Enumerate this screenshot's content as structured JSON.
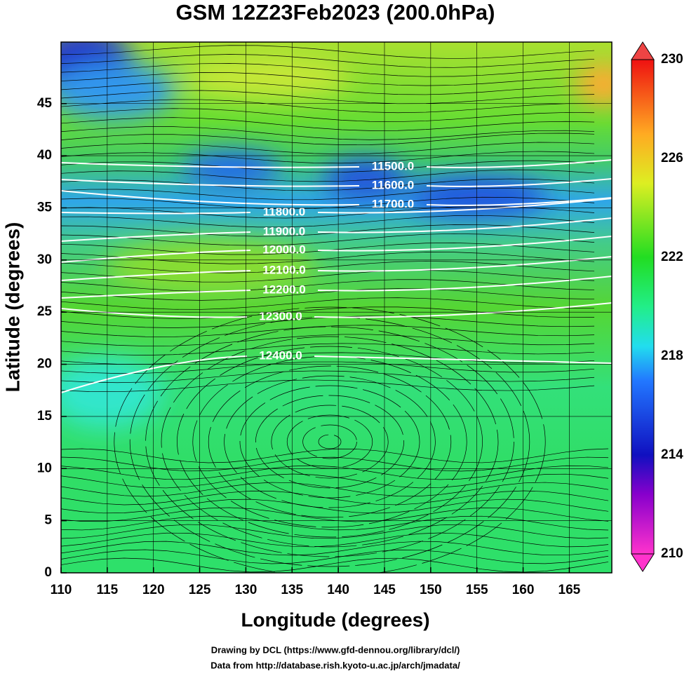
{
  "title": "GSM 12Z23Feb2023 (200.0hPa)",
  "x_label": "Longitude (degrees)",
  "y_label": "Latitude  (degrees)",
  "xlim": [
    110,
    169.6
  ],
  "ylim": [
    0,
    50.9
  ],
  "xticks": [
    110,
    115,
    120,
    125,
    130,
    135,
    140,
    145,
    150,
    155,
    160,
    165
  ],
  "yticks": [
    0,
    5,
    10,
    15,
    20,
    25,
    30,
    35,
    40,
    45
  ],
  "colorbar": {
    "lim": [
      210,
      230
    ],
    "ticks": [
      230,
      226,
      222,
      218,
      214,
      210
    ]
  },
  "contours": [
    {
      "value": 11500,
      "label": "11500.0"
    },
    {
      "value": 11600,
      "label": "11600.0"
    },
    {
      "value": 11700,
      "label": "11700.0"
    },
    {
      "value": 11800,
      "label": "11800.0"
    },
    {
      "value": 11900,
      "label": "11900.0"
    },
    {
      "value": 12000,
      "label": "12000.0"
    },
    {
      "value": 12100,
      "label": "12100.0"
    },
    {
      "value": 12200,
      "label": "12200.0"
    },
    {
      "value": 12300,
      "label": "12300.0"
    },
    {
      "value": 12400,
      "label": "12400.0"
    }
  ],
  "credits": [
    "Drawing by DCL (https://www.gfd-dennou.org/library/dcl/)",
    "Data from http://database.rish.kyoto-u.ac.jp/arch/jmadata/"
  ]
}
